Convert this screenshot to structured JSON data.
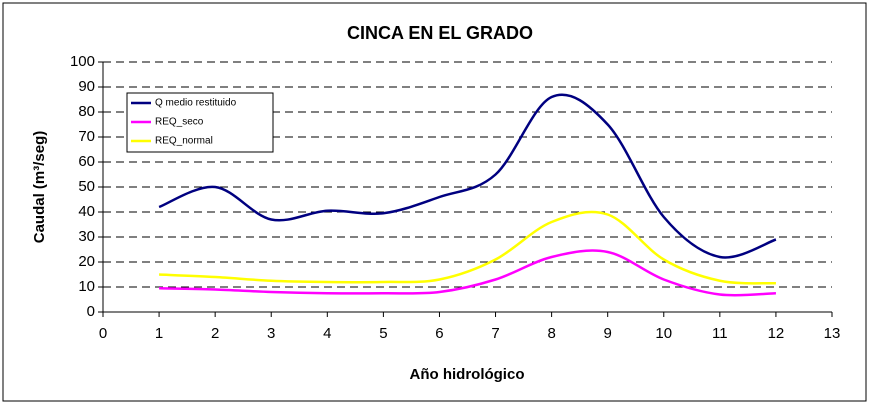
{
  "chart_data": {
    "type": "line",
    "title": "CINCA EN EL GRADO",
    "x_label": "Año hidrológico",
    "y_label": "Caudal (m³/seg)",
    "x": [
      1,
      2,
      3,
      4,
      5,
      6,
      7,
      8,
      9,
      10,
      11,
      12
    ],
    "series": [
      {
        "name": "Q medio restituido",
        "color": "#000080",
        "values": [
          42,
          50,
          37,
          40.5,
          39.5,
          46,
          55,
          86,
          75,
          38,
          22,
          29
        ]
      },
      {
        "name": "REQ_seco",
        "color": "#ff00ff",
        "values": [
          9.5,
          9,
          8,
          7.5,
          7.5,
          8,
          13,
          22,
          24,
          13,
          7,
          7.5
        ]
      },
      {
        "name": "REQ_normal",
        "color": "#ffff00",
        "values": [
          15,
          14,
          12.5,
          12,
          12,
          13,
          21,
          36,
          39,
          21,
          12.5,
          11.5
        ]
      }
    ],
    "xlim": [
      0,
      13
    ],
    "xticks": [
      0,
      1,
      2,
      3,
      4,
      5,
      6,
      7,
      8,
      9,
      10,
      11,
      12,
      13
    ],
    "ylim": [
      0,
      100
    ],
    "yticks": [
      0,
      10,
      20,
      30,
      40,
      50,
      60,
      70,
      80,
      90,
      100
    ],
    "grid": true,
    "legend": "upper-left"
  }
}
